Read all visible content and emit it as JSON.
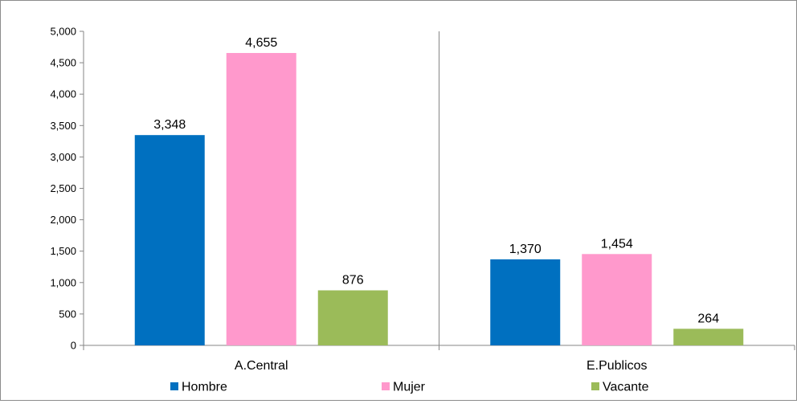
{
  "chart_data": {
    "type": "bar",
    "categories": [
      "A.Central",
      "E.Publicos"
    ],
    "series": [
      {
        "name": "Hombre",
        "color": "#0070C0",
        "values": [
          3348,
          1370
        ],
        "labels": [
          "3,348",
          "1,370"
        ]
      },
      {
        "name": "Mujer",
        "color": "#FF99CC",
        "values": [
          4655,
          1454
        ],
        "labels": [
          "4,655",
          "1,454"
        ]
      },
      {
        "name": "Vacante",
        "color": "#9BBB59",
        "values": [
          876,
          264
        ],
        "labels": [
          "876",
          "264"
        ]
      }
    ],
    "ylim": [
      0,
      5000
    ],
    "yticks": [
      0,
      500,
      1000,
      1500,
      2000,
      2500,
      3000,
      3500,
      4000,
      4500,
      5000
    ],
    "ytick_labels": [
      "0",
      "500",
      "1,000",
      "1,500",
      "2,000",
      "2,500",
      "3,000",
      "3,500",
      "4,000",
      "4,500",
      "5,000"
    ],
    "grid": "category-separators",
    "legend": "bottom"
  }
}
